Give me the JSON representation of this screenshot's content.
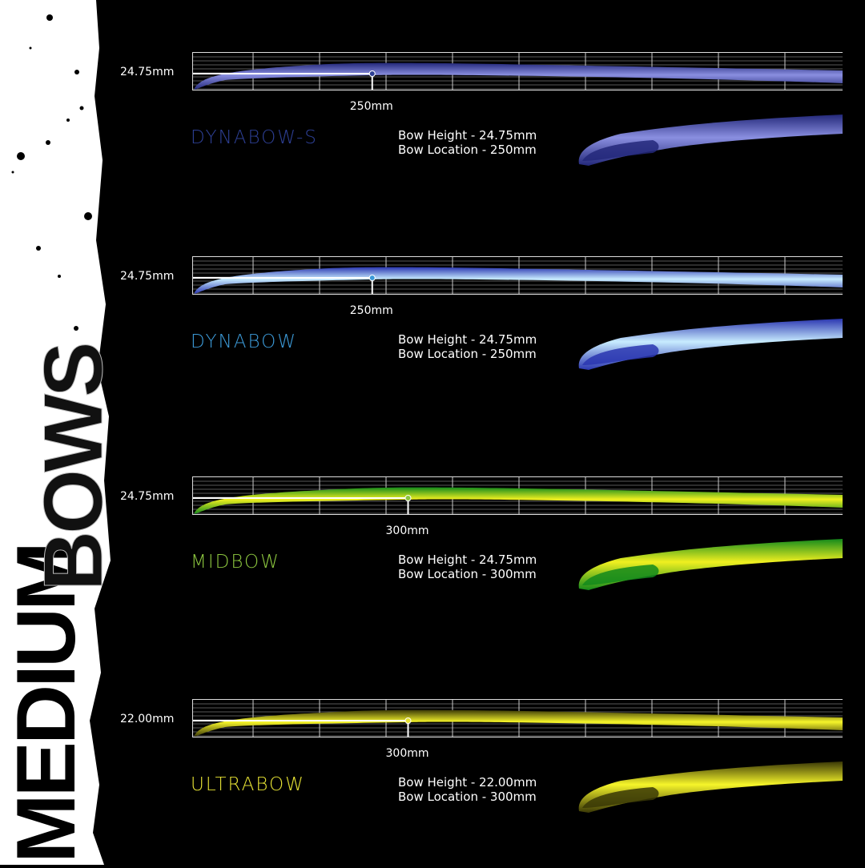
{
  "heading": {
    "line1": "MEDIUM",
    "line2": "BOWS"
  },
  "products": [
    {
      "name": "DYNABOW-S",
      "height_label": "24.75mm",
      "location_label": "250mm",
      "bow_height": "Bow Height - 24.75mm",
      "bow_location": "Bow Location - 250mm",
      "name_color": "#2d3f94",
      "light": "#8a8fe0",
      "dark": "#23287a",
      "location_mm": 250
    },
    {
      "name": "DYNABOW",
      "height_label": "24.75mm",
      "location_label": "250mm",
      "bow_height": "Bow Height - 24.75mm",
      "bow_location": "Bow Location - 250mm",
      "name_color": "#3c9ad8",
      "light": "#c8ecff",
      "dark": "#2a36b0",
      "location_mm": 250
    },
    {
      "name": "MIDBOW",
      "height_label": "24.75mm",
      "location_label": "300mm",
      "bow_height": "Bow Height - 24.75mm",
      "bow_location": "Bow Location - 300mm",
      "name_color": "#8cc63f",
      "light": "#f0f020",
      "dark": "#138a1c",
      "location_mm": 300
    },
    {
      "name": "ULTRABOW",
      "height_label": "22.00mm",
      "location_label": "300mm",
      "bow_height": "Bow Height - 22.00mm",
      "bow_location": "Bow Location - 300mm",
      "name_color": "#e6e234",
      "light": "#f6f52a",
      "dark": "#3a3806",
      "location_mm": 300
    }
  ]
}
